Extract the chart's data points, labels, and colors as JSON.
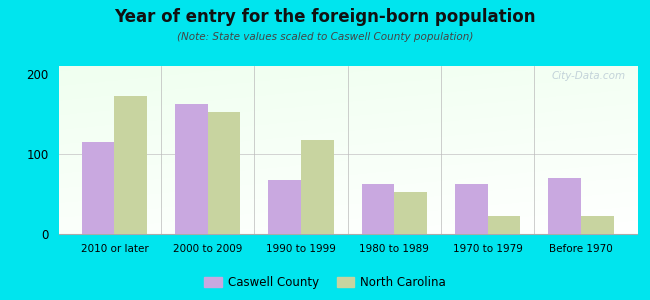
{
  "title": "Year of entry for the foreign-born population",
  "subtitle": "(Note: State values scaled to Caswell County population)",
  "categories": [
    "2010 or later",
    "2000 to 2009",
    "1990 to 1999",
    "1980 to 1989",
    "1970 to 1979",
    "Before 1970"
  ],
  "caswell_values": [
    115,
    163,
    68,
    62,
    62,
    70
  ],
  "nc_values": [
    172,
    152,
    118,
    52,
    22,
    22
  ],
  "caswell_color": "#c9a8e0",
  "nc_color": "#c8d4a0",
  "ylim": [
    0,
    210
  ],
  "yticks": [
    0,
    100,
    200
  ],
  "outer_background": "#00e5ee",
  "bar_width": 0.35,
  "legend_caswell": "Caswell County",
  "legend_nc": "North Carolina",
  "watermark": "City-Data.com"
}
